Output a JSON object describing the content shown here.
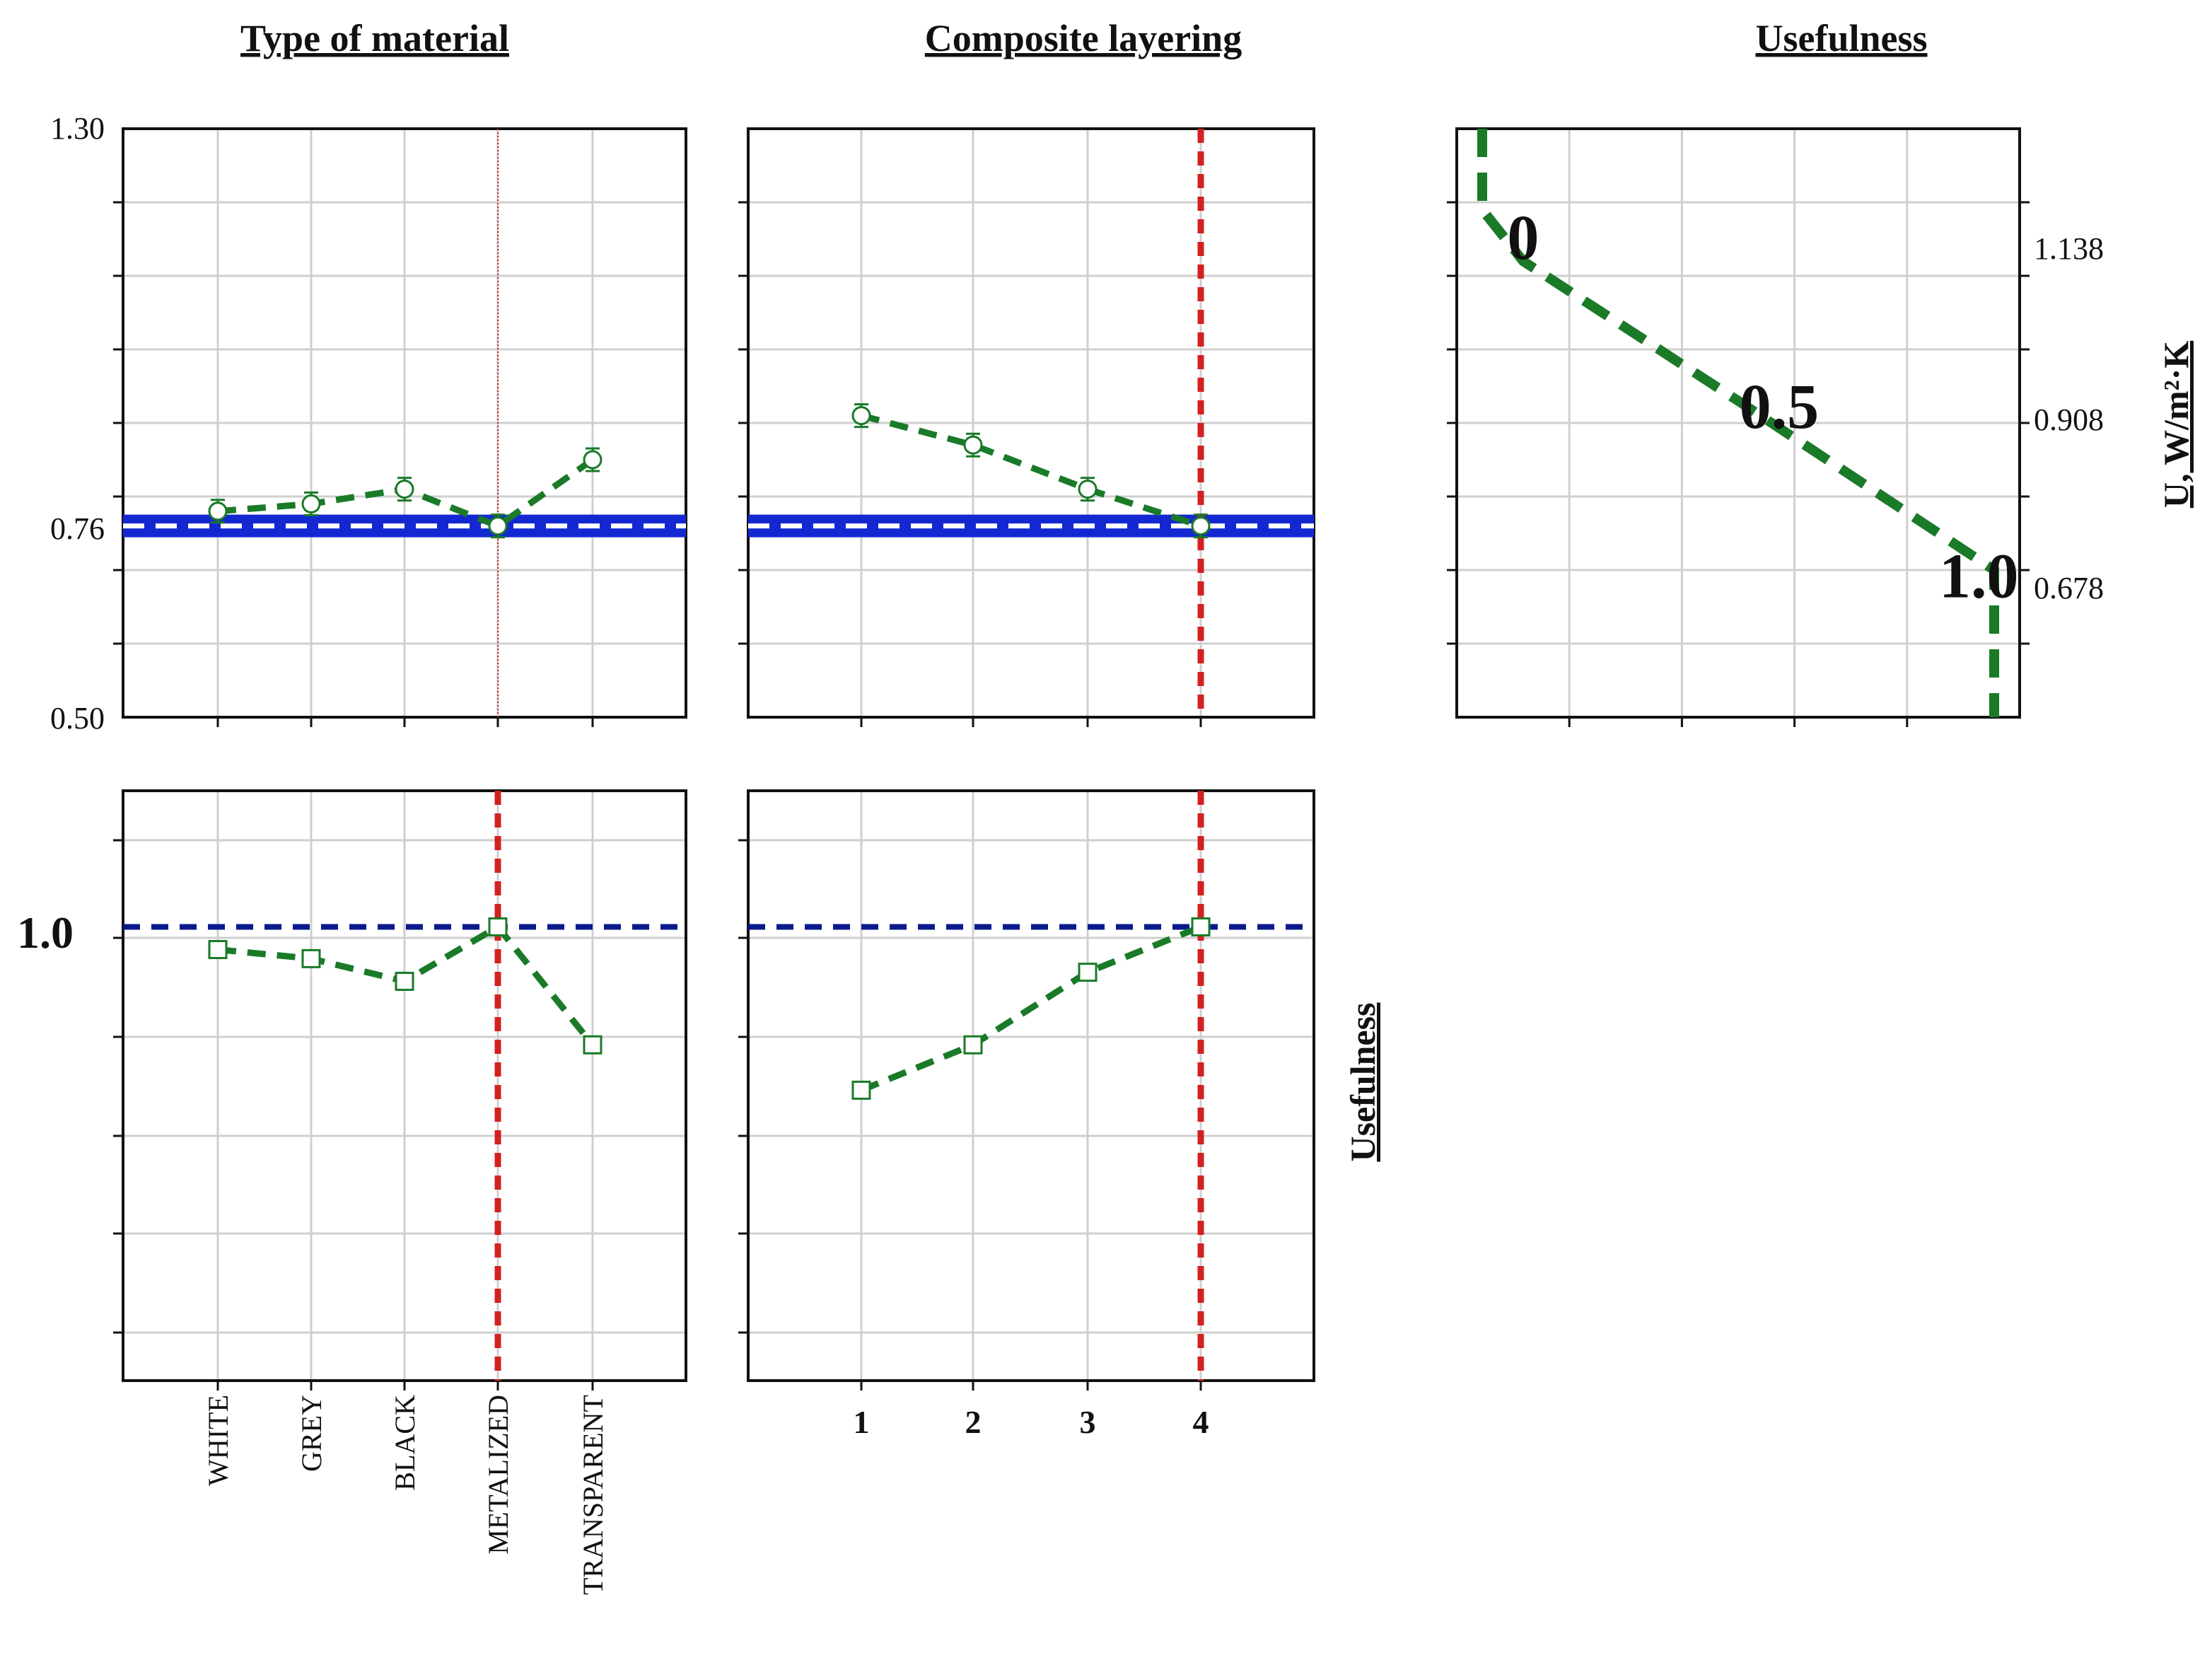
{
  "colors": {
    "series": "#1a7a28",
    "target_band": "#1428d2",
    "usefulness_line": "#0a1a8c",
    "optimum": "#d42020",
    "grid": "#cfcfcf",
    "frame": "#111111"
  },
  "chart_data": [
    {
      "id": "u-vs-material",
      "type": "line",
      "title": "Type of material",
      "categories": [
        "WHITE",
        "GREY",
        "BLACK",
        "METALIZED",
        "TRANSPARENT"
      ],
      "values": [
        0.78,
        0.79,
        0.81,
        0.76,
        0.85
      ],
      "ylabel": "U, W/m²·K",
      "ylim": [
        0.5,
        1.3
      ],
      "yticks": [
        "1.30",
        "0.76",
        "0.50"
      ],
      "target_value": 0.76,
      "optimum_category": "METALIZED",
      "grid": true
    },
    {
      "id": "u-vs-layering",
      "type": "line",
      "title": "Composite layering",
      "categories": [
        "1",
        "2",
        "3",
        "4"
      ],
      "values": [
        0.91,
        0.87,
        0.81,
        0.76
      ],
      "ylim": [
        0.5,
        1.3
      ],
      "target_value": 0.76,
      "optimum_category": "4",
      "grid": true
    },
    {
      "id": "usefulness-profile",
      "type": "line",
      "title": "Usefulness",
      "ylabel": "U, W/m²·K",
      "yticks": [
        "1.138",
        "0.908",
        "0.678"
      ],
      "ylim": [
        0.5,
        1.3
      ],
      "profile": [
        {
          "usefulness": 0.0,
          "u": 1.3
        },
        {
          "usefulness": 0.0,
          "u": 1.19
        },
        {
          "usefulness": 0.08,
          "u": 1.12
        },
        {
          "usefulness": 0.5,
          "u": 0.93
        },
        {
          "usefulness": 1.0,
          "u": 0.7
        },
        {
          "usefulness": 1.0,
          "u": 0.5
        }
      ],
      "contour_labels": [
        {
          "text": "0",
          "usefulness": 0.08,
          "u": 1.15
        },
        {
          "text": "0.5",
          "usefulness": 0.58,
          "u": 0.92
        },
        {
          "text": "1.0",
          "usefulness": 0.97,
          "u": 0.69
        }
      ],
      "grid": true
    },
    {
      "id": "usefulness-vs-material",
      "type": "line",
      "categories": [
        "WHITE",
        "GREY",
        "BLACK",
        "METALIZED",
        "TRANSPARENT"
      ],
      "values": [
        0.975,
        0.965,
        0.94,
        1.0,
        0.87
      ],
      "ylabel": "Usefulness",
      "ylim": [
        0.5,
        1.15
      ],
      "ytick": "1.0",
      "reference_value": 1.0,
      "optimum_category": "METALIZED",
      "grid": true
    },
    {
      "id": "usefulness-vs-layering",
      "type": "line",
      "categories": [
        "1",
        "2",
        "3",
        "4"
      ],
      "values": [
        0.82,
        0.87,
        0.95,
        1.0
      ],
      "ylim": [
        0.5,
        1.15
      ],
      "reference_value": 1.0,
      "optimum_category": "4",
      "grid": true
    }
  ]
}
